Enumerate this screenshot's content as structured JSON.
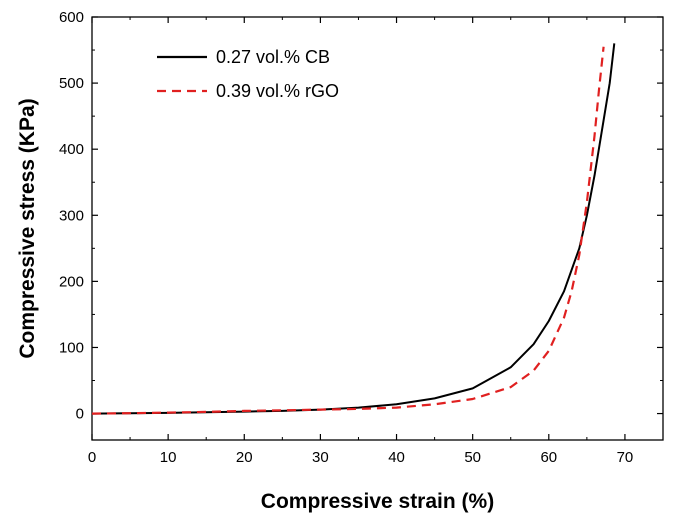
{
  "chart_data": {
    "type": "line",
    "xlabel": "Compressive strain (%)",
    "ylabel": "Compressive stress (KPa)",
    "xlim": [
      0,
      75
    ],
    "ylim": [
      -40,
      600
    ],
    "xticks": [
      0,
      10,
      20,
      30,
      40,
      50,
      60,
      70
    ],
    "yticks": [
      0,
      100,
      200,
      300,
      400,
      500,
      600
    ],
    "grid": false,
    "legend_position": "top-left",
    "series": [
      {
        "name": "0.27 vol.% CB",
        "color": "#000000",
        "line_style": "solid",
        "x": [
          0,
          5,
          10,
          15,
          20,
          25,
          30,
          35,
          40,
          45,
          50,
          55,
          58,
          60,
          62,
          64,
          65,
          66,
          67,
          68,
          68.6
        ],
        "y": [
          0,
          0.5,
          1,
          2,
          3,
          4,
          6,
          9,
          14,
          23,
          38,
          70,
          105,
          140,
          185,
          250,
          300,
          360,
          430,
          500,
          560
        ]
      },
      {
        "name": "0.39 vol.% rGO",
        "color": "#e02020",
        "line_style": "dashed",
        "x": [
          0,
          5,
          10,
          15,
          20,
          25,
          30,
          35,
          40,
          45,
          50,
          55,
          58,
          60,
          62,
          63,
          64,
          65,
          66,
          66.6,
          67.2
        ],
        "y": [
          0,
          0.5,
          1.5,
          2.5,
          4,
          5,
          6,
          7,
          9,
          14,
          22,
          40,
          65,
          95,
          145,
          185,
          240,
          320,
          420,
          490,
          555
        ]
      }
    ]
  }
}
